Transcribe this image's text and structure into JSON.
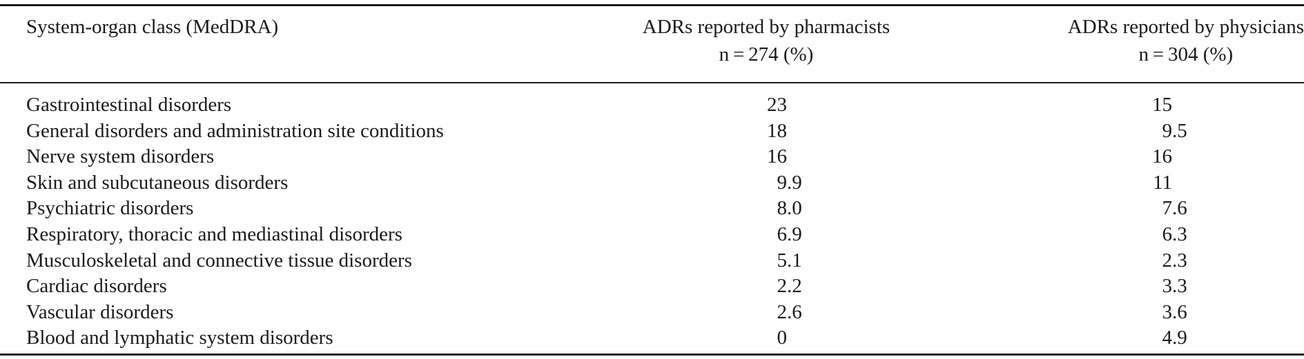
{
  "table": {
    "header": {
      "label_column": "System-organ class (MedDRA)",
      "col1_title": "ADRs reported by pharmacists",
      "col1_n": "n = 274 (%)",
      "col2_title": "ADRs reported by physicians",
      "col2_n": "n = 304 (%)"
    },
    "rows": [
      {
        "label": "Gastrointestinal disorders",
        "pharmacists": "23",
        "physicians": "15"
      },
      {
        "label": "General disorders and administration site conditions",
        "pharmacists": "18",
        "physicians": "9.5"
      },
      {
        "label": "Nerve system disorders",
        "pharmacists": "16",
        "physicians": "16"
      },
      {
        "label": "Skin and subcutaneous disorders",
        "pharmacists": "9.9",
        "physicians": "11"
      },
      {
        "label": "Psychiatric disorders",
        "pharmacists": "8.0",
        "physicians": "7.6"
      },
      {
        "label": "Respiratory, thoracic and mediastinal disorders",
        "pharmacists": "6.9",
        "physicians": "6.3"
      },
      {
        "label": "Musculoskeletal and connective tissue disorders",
        "pharmacists": "5.1",
        "physicians": "2.3"
      },
      {
        "label": "Cardiac disorders",
        "pharmacists": "2.2",
        "physicians": "3.3"
      },
      {
        "label": "Vascular disorders",
        "pharmacists": "2.6",
        "physicians": "3.6"
      },
      {
        "label": "Blood and lymphatic system disorders",
        "pharmacists": "0",
        "physicians": "4.9"
      }
    ]
  }
}
